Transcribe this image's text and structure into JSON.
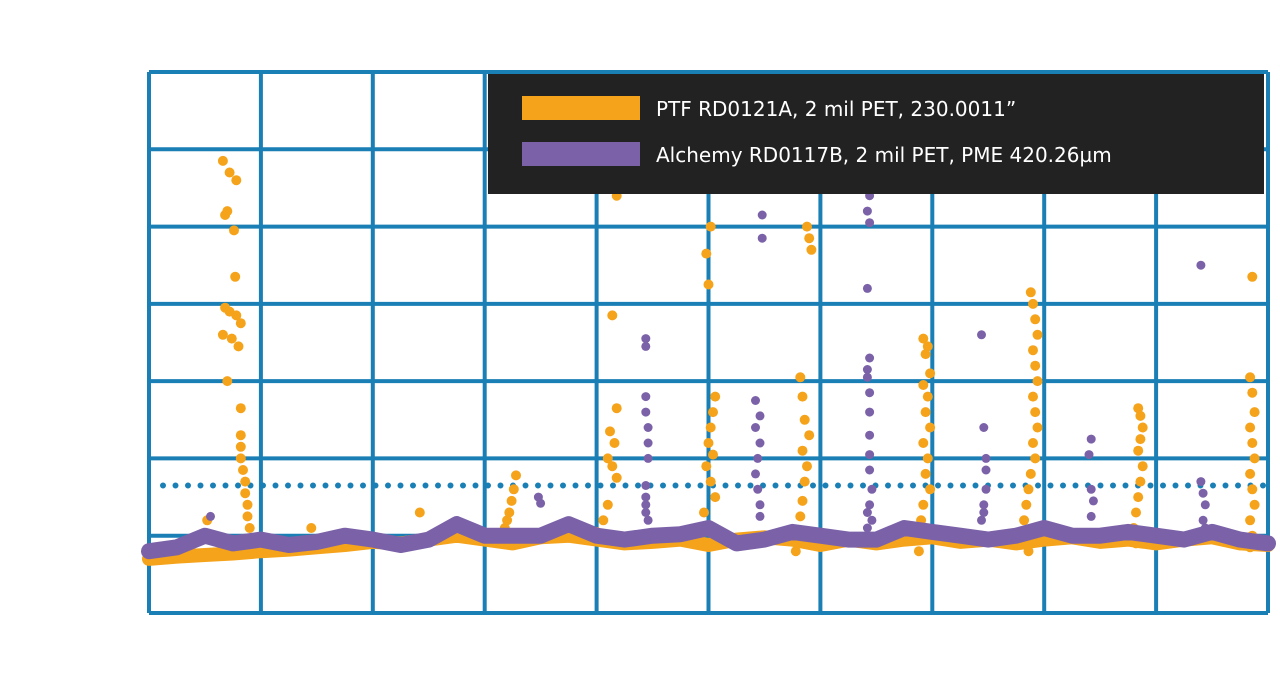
{
  "chart_data": {
    "type": "scatter",
    "title": "",
    "xlabel": "",
    "ylabel": "",
    "grid": true,
    "legend_position": "top-right",
    "xlim": [
      0,
      10
    ],
    "ylim": [
      -1,
      6
    ],
    "threshold": {
      "y": 0.65,
      "style": "dotted",
      "color": "#1a7fb5"
    },
    "colors": {
      "grid": "#1a7fb5",
      "legend_bg": "#222222",
      "legend_text": "#ffffff"
    },
    "series": [
      {
        "name": "PTF RD0121A, 2 mil PET, 230.0011”",
        "color": "#f5a31a",
        "baseline": [
          [
            0,
            -0.3
          ],
          [
            0.25,
            -0.27
          ],
          [
            0.5,
            -0.25
          ],
          [
            0.75,
            -0.23
          ],
          [
            1.0,
            -0.2
          ],
          [
            1.25,
            -0.18
          ],
          [
            1.5,
            -0.15
          ],
          [
            1.75,
            -0.12
          ],
          [
            2.0,
            -0.08
          ],
          [
            2.25,
            -0.1
          ],
          [
            2.5,
            -0.05
          ],
          [
            2.75,
            0.0
          ],
          [
            3.0,
            -0.05
          ],
          [
            3.25,
            -0.1
          ],
          [
            3.5,
            -0.02
          ],
          [
            3.75,
            0.0
          ],
          [
            4.0,
            -0.05
          ],
          [
            4.25,
            -0.1
          ],
          [
            4.5,
            -0.08
          ],
          [
            4.75,
            -0.05
          ],
          [
            5.0,
            -0.12
          ],
          [
            5.25,
            -0.05
          ],
          [
            5.5,
            -0.02
          ],
          [
            5.75,
            -0.05
          ],
          [
            6.0,
            -0.12
          ],
          [
            6.25,
            -0.05
          ],
          [
            6.5,
            -0.1
          ],
          [
            6.75,
            -0.05
          ],
          [
            7.0,
            -0.02
          ],
          [
            7.25,
            -0.08
          ],
          [
            7.5,
            -0.05
          ],
          [
            7.75,
            -0.1
          ],
          [
            8.0,
            -0.05
          ],
          [
            8.25,
            -0.02
          ],
          [
            8.5,
            -0.08
          ],
          [
            8.75,
            -0.05
          ],
          [
            9.0,
            -0.1
          ],
          [
            9.25,
            -0.05
          ],
          [
            9.5,
            -0.02
          ],
          [
            9.75,
            -0.1
          ],
          [
            10.0,
            -0.12
          ]
        ],
        "points": [
          [
            0.66,
            4.85
          ],
          [
            0.72,
            4.7
          ],
          [
            0.78,
            4.6
          ],
          [
            0.68,
            4.15
          ],
          [
            0.7,
            4.2
          ],
          [
            0.76,
            3.95
          ],
          [
            0.77,
            3.35
          ],
          [
            0.68,
            2.95
          ],
          [
            0.72,
            2.9
          ],
          [
            0.78,
            2.85
          ],
          [
            0.82,
            2.75
          ],
          [
            0.66,
            2.6
          ],
          [
            0.74,
            2.55
          ],
          [
            0.8,
            2.45
          ],
          [
            0.7,
            2.0
          ],
          [
            0.82,
            1.65
          ],
          [
            0.82,
            1.3
          ],
          [
            0.82,
            1.15
          ],
          [
            0.82,
            1.0
          ],
          [
            0.84,
            0.85
          ],
          [
            0.86,
            0.7
          ],
          [
            0.86,
            0.55
          ],
          [
            0.88,
            0.4
          ],
          [
            0.88,
            0.25
          ],
          [
            0.9,
            0.1
          ],
          [
            0.52,
            0.2
          ],
          [
            1.45,
            0.1
          ],
          [
            2.42,
            0.3
          ],
          [
            3.28,
            0.78
          ],
          [
            3.26,
            0.6
          ],
          [
            3.24,
            0.45
          ],
          [
            3.22,
            0.3
          ],
          [
            3.2,
            0.2
          ],
          [
            3.18,
            0.1
          ],
          [
            4.18,
            4.4
          ],
          [
            4.14,
            2.85
          ],
          [
            4.18,
            1.65
          ],
          [
            4.12,
            1.35
          ],
          [
            4.16,
            1.2
          ],
          [
            4.1,
            1.0
          ],
          [
            4.14,
            0.9
          ],
          [
            4.18,
            0.75
          ],
          [
            4.1,
            0.4
          ],
          [
            4.06,
            0.2
          ],
          [
            4.0,
            0.05
          ],
          [
            5.02,
            4.0
          ],
          [
            5.0,
            3.25
          ],
          [
            4.98,
            3.65
          ],
          [
            5.06,
            1.8
          ],
          [
            5.04,
            1.6
          ],
          [
            5.02,
            1.4
          ],
          [
            5.0,
            1.2
          ],
          [
            5.04,
            1.05
          ],
          [
            4.98,
            0.9
          ],
          [
            5.02,
            0.7
          ],
          [
            5.06,
            0.5
          ],
          [
            4.96,
            0.3
          ],
          [
            5.0,
            0.1
          ],
          [
            5.88,
            4.0
          ],
          [
            5.9,
            3.85
          ],
          [
            5.92,
            3.7
          ],
          [
            5.82,
            2.05
          ],
          [
            5.84,
            1.8
          ],
          [
            5.86,
            1.5
          ],
          [
            5.9,
            1.3
          ],
          [
            5.84,
            1.1
          ],
          [
            5.88,
            0.9
          ],
          [
            5.86,
            0.7
          ],
          [
            5.84,
            0.45
          ],
          [
            5.82,
            0.25
          ],
          [
            5.78,
            -0.2
          ],
          [
            6.92,
            2.55
          ],
          [
            6.96,
            2.45
          ],
          [
            6.94,
            2.35
          ],
          [
            6.98,
            2.1
          ],
          [
            6.92,
            1.95
          ],
          [
            6.96,
            1.8
          ],
          [
            6.94,
            1.6
          ],
          [
            6.98,
            1.4
          ],
          [
            6.92,
            1.2
          ],
          [
            6.96,
            1.0
          ],
          [
            6.94,
            0.8
          ],
          [
            6.98,
            0.6
          ],
          [
            6.92,
            0.4
          ],
          [
            6.9,
            0.2
          ],
          [
            6.88,
            -0.2
          ],
          [
            7.88,
            3.15
          ],
          [
            7.9,
            3.0
          ],
          [
            7.92,
            2.8
          ],
          [
            7.94,
            2.6
          ],
          [
            7.9,
            2.4
          ],
          [
            7.92,
            2.2
          ],
          [
            7.94,
            2.0
          ],
          [
            7.9,
            1.8
          ],
          [
            7.92,
            1.6
          ],
          [
            7.94,
            1.4
          ],
          [
            7.9,
            1.2
          ],
          [
            7.92,
            1.0
          ],
          [
            7.88,
            0.8
          ],
          [
            7.86,
            0.6
          ],
          [
            7.84,
            0.4
          ],
          [
            7.82,
            0.2
          ],
          [
            7.84,
            0.0
          ],
          [
            7.86,
            -0.2
          ],
          [
            8.84,
            1.65
          ],
          [
            8.86,
            1.55
          ],
          [
            8.88,
            1.4
          ],
          [
            8.86,
            1.25
          ],
          [
            8.84,
            1.1
          ],
          [
            8.88,
            0.9
          ],
          [
            8.86,
            0.7
          ],
          [
            8.84,
            0.5
          ],
          [
            8.82,
            0.3
          ],
          [
            8.8,
            0.1
          ],
          [
            8.82,
            -0.1
          ],
          [
            9.86,
            3.35
          ],
          [
            9.84,
            2.05
          ],
          [
            9.86,
            1.85
          ],
          [
            9.88,
            1.6
          ],
          [
            9.84,
            1.4
          ],
          [
            9.86,
            1.2
          ],
          [
            9.88,
            1.0
          ],
          [
            9.84,
            0.8
          ],
          [
            9.86,
            0.6
          ],
          [
            9.88,
            0.4
          ],
          [
            9.84,
            0.2
          ],
          [
            9.86,
            0.0
          ],
          [
            9.84,
            -0.15
          ]
        ]
      },
      {
        "name": "Alchemy RD0117B, 2 mil PET, PME 420.26µm",
        "color": "#7b62a8",
        "baseline": [
          [
            0,
            -0.2
          ],
          [
            0.25,
            -0.15
          ],
          [
            0.5,
            0.0
          ],
          [
            0.75,
            -0.1
          ],
          [
            1.0,
            -0.05
          ],
          [
            1.25,
            -0.12
          ],
          [
            1.5,
            -0.08
          ],
          [
            1.75,
            0.0
          ],
          [
            2.0,
            -0.05
          ],
          [
            2.25,
            -0.12
          ],
          [
            2.5,
            -0.05
          ],
          [
            2.75,
            0.15
          ],
          [
            3.0,
            0.0
          ],
          [
            3.25,
            0.0
          ],
          [
            3.5,
            0.0
          ],
          [
            3.75,
            0.15
          ],
          [
            4.0,
            0.0
          ],
          [
            4.25,
            -0.05
          ],
          [
            4.5,
            0.0
          ],
          [
            4.75,
            0.02
          ],
          [
            5.0,
            0.1
          ],
          [
            5.25,
            -0.1
          ],
          [
            5.5,
            -0.05
          ],
          [
            5.75,
            0.05
          ],
          [
            6.0,
            0.0
          ],
          [
            6.25,
            -0.05
          ],
          [
            6.5,
            -0.05
          ],
          [
            6.75,
            0.1
          ],
          [
            7.0,
            0.05
          ],
          [
            7.25,
            0.0
          ],
          [
            7.5,
            -0.05
          ],
          [
            7.75,
            0.0
          ],
          [
            8.0,
            0.1
          ],
          [
            8.25,
            0.0
          ],
          [
            8.5,
            0.0
          ],
          [
            8.75,
            0.05
          ],
          [
            9.0,
            0.0
          ],
          [
            9.25,
            -0.05
          ],
          [
            9.5,
            0.05
          ],
          [
            9.75,
            -0.05
          ],
          [
            10.0,
            -0.1
          ]
        ],
        "points": [
          [
            0.55,
            0.25
          ],
          [
            3.48,
            0.5
          ],
          [
            3.5,
            0.42
          ],
          [
            4.44,
            2.55
          ],
          [
            4.44,
            2.45
          ],
          [
            4.44,
            1.8
          ],
          [
            4.44,
            1.6
          ],
          [
            4.46,
            1.4
          ],
          [
            4.46,
            1.2
          ],
          [
            4.46,
            1.0
          ],
          [
            4.44,
            0.65
          ],
          [
            4.44,
            0.5
          ],
          [
            4.44,
            0.4
          ],
          [
            4.44,
            0.3
          ],
          [
            4.46,
            0.2
          ],
          [
            5.48,
            4.15
          ],
          [
            5.48,
            3.85
          ],
          [
            5.42,
            1.75
          ],
          [
            5.46,
            1.55
          ],
          [
            5.42,
            1.4
          ],
          [
            5.46,
            1.2
          ],
          [
            5.44,
            1.0
          ],
          [
            5.42,
            0.8
          ],
          [
            5.44,
            0.6
          ],
          [
            5.46,
            0.4
          ],
          [
            5.46,
            0.25
          ],
          [
            6.42,
            4.65
          ],
          [
            6.44,
            4.4
          ],
          [
            6.42,
            4.2
          ],
          [
            6.44,
            4.05
          ],
          [
            6.42,
            3.2
          ],
          [
            6.44,
            2.3
          ],
          [
            6.42,
            2.15
          ],
          [
            6.42,
            2.05
          ],
          [
            6.44,
            1.85
          ],
          [
            6.44,
            1.6
          ],
          [
            6.44,
            1.3
          ],
          [
            6.44,
            1.05
          ],
          [
            6.44,
            0.85
          ],
          [
            6.46,
            0.6
          ],
          [
            6.44,
            0.4
          ],
          [
            6.42,
            0.3
          ],
          [
            6.46,
            0.2
          ],
          [
            6.42,
            0.1
          ],
          [
            7.44,
            2.6
          ],
          [
            7.46,
            1.4
          ],
          [
            7.48,
            1.0
          ],
          [
            7.48,
            0.85
          ],
          [
            7.48,
            0.6
          ],
          [
            7.46,
            0.4
          ],
          [
            7.46,
            0.3
          ],
          [
            7.44,
            0.2
          ],
          [
            8.42,
            1.25
          ],
          [
            8.4,
            1.05
          ],
          [
            8.42,
            0.6
          ],
          [
            8.44,
            0.45
          ],
          [
            8.42,
            0.25
          ],
          [
            9.4,
            3.5
          ],
          [
            9.4,
            0.7
          ],
          [
            9.42,
            0.55
          ],
          [
            9.44,
            0.4
          ],
          [
            9.42,
            0.2
          ],
          [
            9.44,
            0.1
          ]
        ]
      }
    ]
  }
}
